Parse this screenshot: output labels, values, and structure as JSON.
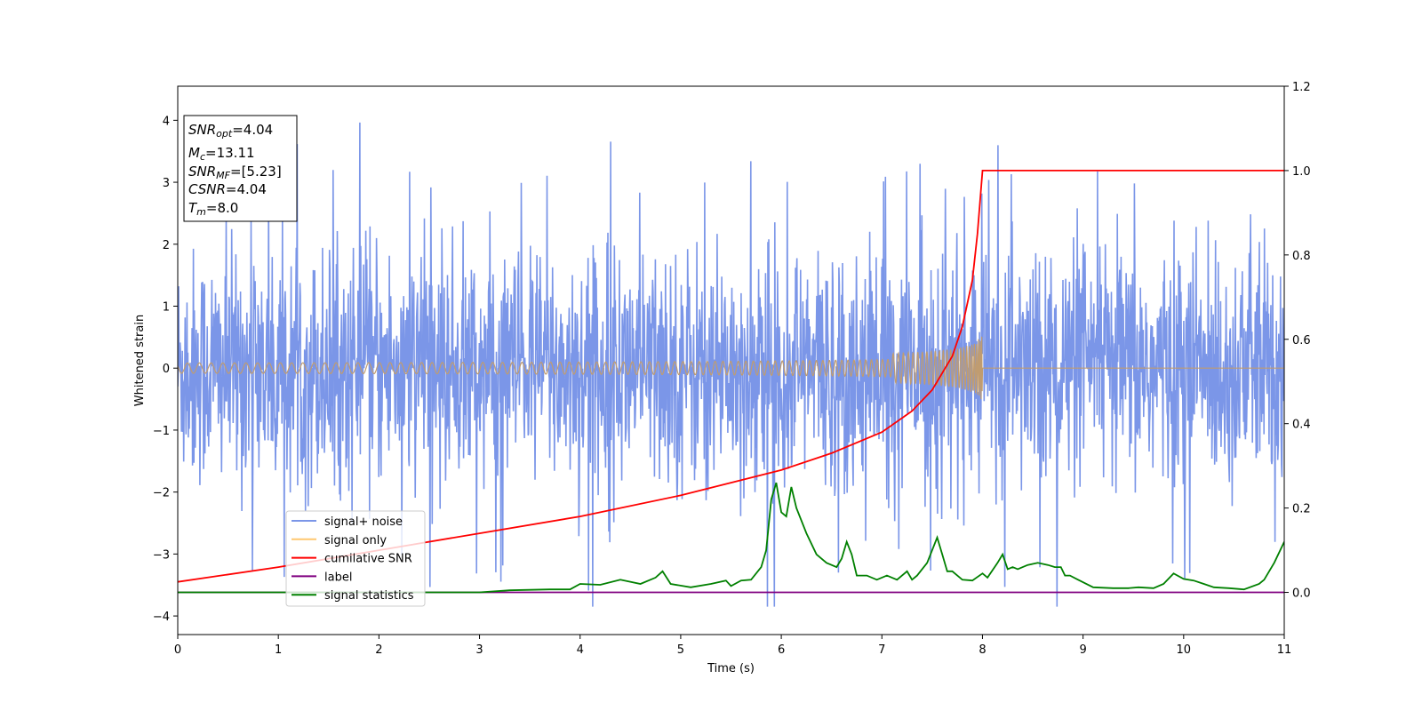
{
  "chart_data": {
    "type": "line",
    "xlabel": "Time (s)",
    "ylabel": "Whitened strain",
    "xlim": [
      0,
      11
    ],
    "ylim_left": [
      -4.3,
      4.55
    ],
    "ylim_right": [
      -0.1,
      1.2
    ],
    "x_ticks": [
      0,
      1,
      2,
      3,
      4,
      5,
      6,
      7,
      8,
      9,
      10,
      11
    ],
    "y_ticks_left": [
      -4,
      -3,
      -2,
      -1,
      0,
      1,
      2,
      3,
      4
    ],
    "y_ticks_right": [
      0.0,
      0.2,
      0.4,
      0.6,
      0.8,
      1.0,
      1.2
    ],
    "grid": false,
    "legend_placement": "lower-left",
    "annotation": {
      "snr_opt": {
        "sym": "SNR",
        "sub": "opt",
        "value": "=4.04"
      },
      "mc": {
        "sym": "M",
        "sub": "c",
        "value": "=13.11"
      },
      "snr_mf": {
        "sym": "SNR",
        "sub": "MF",
        "value": "=[5.23]"
      },
      "csnr": {
        "sym": "CSNR",
        "sub": "",
        "value": "=4.04"
      },
      "tm": {
        "sym": "T",
        "sub": "m",
        "value": "=8.0"
      }
    },
    "series": [
      {
        "name": "signal+ noise",
        "color": "#7b96e8",
        "axis": "left",
        "description_values": {
          "amplitude_typical": 1.5,
          "max_peak": 4.17,
          "min_trough": -3.9
        }
      },
      {
        "name": "signal only",
        "color": "#ffc870",
        "axis": "left",
        "chirp_end": 8.0,
        "peak_amplitude": 0.62
      },
      {
        "name": "cumilative SNR",
        "color": "#ff0000",
        "axis": "right",
        "x": [
          0,
          1,
          2,
          3,
          4,
          5,
          5.5,
          6,
          6.5,
          7,
          7.3,
          7.5,
          7.7,
          7.8,
          7.9,
          7.95,
          8.0,
          8.01,
          11
        ],
        "values": [
          0.025,
          0.06,
          0.1,
          0.14,
          0.18,
          0.23,
          0.26,
          0.29,
          0.33,
          0.38,
          0.43,
          0.48,
          0.56,
          0.63,
          0.74,
          0.85,
          1.0,
          1.0,
          1.0
        ]
      },
      {
        "name": "label",
        "color": "#800080",
        "axis": "right",
        "x": [
          0,
          11
        ],
        "values": [
          0,
          0
        ]
      },
      {
        "name": "signal statistics",
        "color": "#008000",
        "axis": "right",
        "x": [
          0,
          0.5,
          1.0,
          1.5,
          2.0,
          2.5,
          3.0,
          3.3,
          3.7,
          3.9,
          4.0,
          4.2,
          4.4,
          4.6,
          4.75,
          4.82,
          4.9,
          5.1,
          5.3,
          5.45,
          5.5,
          5.6,
          5.7,
          5.8,
          5.85,
          5.9,
          5.95,
          6.0,
          6.05,
          6.1,
          6.15,
          6.25,
          6.35,
          6.45,
          6.55,
          6.6,
          6.65,
          6.7,
          6.75,
          6.85,
          6.95,
          7.05,
          7.15,
          7.25,
          7.3,
          7.35,
          7.45,
          7.55,
          7.6,
          7.65,
          7.7,
          7.8,
          7.9,
          8.0,
          8.05,
          8.15,
          8.2,
          8.25,
          8.3,
          8.35,
          8.45,
          8.55,
          8.65,
          8.72,
          8.78,
          8.82,
          8.87,
          8.95,
          9.1,
          9.3,
          9.45,
          9.55,
          9.7,
          9.8,
          9.9,
          10.0,
          10.1,
          10.2,
          10.3,
          10.45,
          10.6,
          10.75,
          10.8,
          10.9,
          11.0
        ],
        "values": [
          0.0,
          0.0,
          0.0,
          0.0,
          0.0,
          0.0,
          0.0,
          0.005,
          0.007,
          0.007,
          0.02,
          0.018,
          0.03,
          0.02,
          0.035,
          0.05,
          0.02,
          0.012,
          0.02,
          0.028,
          0.015,
          0.028,
          0.03,
          0.06,
          0.1,
          0.22,
          0.26,
          0.19,
          0.18,
          0.25,
          0.2,
          0.14,
          0.09,
          0.07,
          0.06,
          0.08,
          0.12,
          0.09,
          0.04,
          0.04,
          0.03,
          0.04,
          0.03,
          0.05,
          0.03,
          0.04,
          0.07,
          0.13,
          0.09,
          0.05,
          0.05,
          0.03,
          0.028,
          0.045,
          0.035,
          0.07,
          0.09,
          0.055,
          0.06,
          0.055,
          0.065,
          0.07,
          0.065,
          0.06,
          0.06,
          0.04,
          0.04,
          0.03,
          0.012,
          0.01,
          0.01,
          0.012,
          0.01,
          0.02,
          0.045,
          0.032,
          0.028,
          0.02,
          0.012,
          0.01,
          0.007,
          0.02,
          0.03,
          0.07,
          0.12
        ]
      }
    ]
  }
}
